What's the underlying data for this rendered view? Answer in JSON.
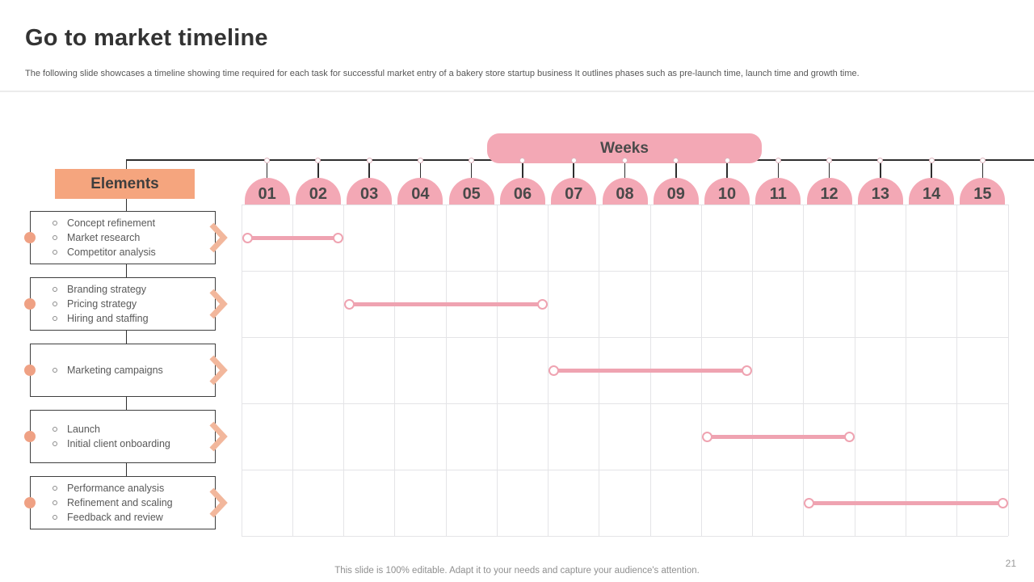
{
  "slide": {
    "title": "Go to market timeline",
    "subtitle": "The following slide showcases a timeline showing time required for each task for successful market entry of a bakery store startup business It outlines phases such as pre-launch time, launch time and growth time.",
    "footer_note": "This slide is 100% editable. Adapt it to your needs and capture your audience's attention.",
    "page_number": "21"
  },
  "timeline": {
    "weeks_label": "Weeks",
    "elements_label": "Elements",
    "weeks": [
      "01",
      "02",
      "03",
      "04",
      "05",
      "06",
      "07",
      "08",
      "09",
      "10",
      "11",
      "12",
      "13",
      "14",
      "15"
    ],
    "rows": [
      {
        "elements": [
          "Concept refinement",
          "Market research",
          "Competitor analysis"
        ],
        "start_week": 1,
        "end_week": 2
      },
      {
        "elements": [
          "Branding strategy",
          "Pricing strategy",
          "Hiring and staffing"
        ],
        "start_week": 3,
        "end_week": 6
      },
      {
        "elements": [
          "Marketing campaigns"
        ],
        "start_week": 7,
        "end_week": 10
      },
      {
        "elements": [
          "Launch",
          "Initial client onboarding"
        ],
        "start_week": 10,
        "end_week": 12
      },
      {
        "elements": [
          "Performance analysis",
          "Refinement and scaling",
          "Feedback and review"
        ],
        "start_week": 12,
        "end_week": 15
      }
    ]
  },
  "colors": {
    "pink": "#F3A8B5",
    "pink_bar": "#EFA3B1",
    "peach": "#F5A57E",
    "peach_chevron": "#F2B79C",
    "peach_dot": "#EFA184",
    "grid_line": "#E4E4E7",
    "axis_line": "#2E2E2E",
    "box_border": "#3F3F3F",
    "text_dark": "#333333",
    "text_gray": "#595959",
    "text_light": "#8F8F8F"
  },
  "chart_data": {
    "type": "bar",
    "subtype": "gantt-timeline",
    "title": "Go to market timeline",
    "xlabel": "Weeks",
    "x_ticks": [
      "01",
      "02",
      "03",
      "04",
      "05",
      "06",
      "07",
      "08",
      "09",
      "10",
      "11",
      "12",
      "13",
      "14",
      "15"
    ],
    "xlim": [
      0,
      15
    ],
    "grid": true,
    "legend": false,
    "bar_color": "#EFA3B1",
    "bars": [
      {
        "label": "Concept refinement; Market research; Competitor analysis",
        "start_week": 1,
        "end_week": 2,
        "duration_weeks": 2
      },
      {
        "label": "Branding strategy; Pricing strategy; Hiring and staffing",
        "start_week": 3,
        "end_week": 6,
        "duration_weeks": 4
      },
      {
        "label": "Marketing campaigns",
        "start_week": 7,
        "end_week": 10,
        "duration_weeks": 4
      },
      {
        "label": "Launch; Initial client onboarding",
        "start_week": 10,
        "end_week": 12,
        "duration_weeks": 3
      },
      {
        "label": "Performance analysis; Refinement and scaling; Feedback and review",
        "start_week": 12,
        "end_week": 15,
        "duration_weeks": 4
      }
    ]
  }
}
